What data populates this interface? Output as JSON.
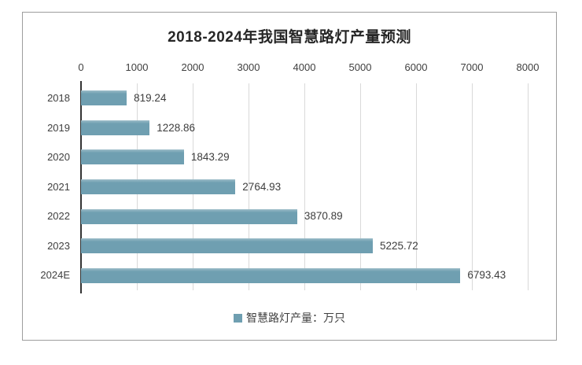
{
  "chart": {
    "title": "2018-2024年我国智慧路灯产量预测",
    "legend_label": "智慧路灯产量：万只",
    "colors": {
      "bar": "#6f9fb1",
      "grid": "#d9d9d9",
      "axis": "#333333",
      "text": "#404040",
      "frame_border": "#9d9d9d"
    }
  },
  "chart_data": {
    "type": "bar",
    "orientation": "horizontal",
    "title": "2018-2024年我国智慧路灯产量预测",
    "categories": [
      "2018",
      "2019",
      "2020",
      "2021",
      "2022",
      "2023",
      "2024E"
    ],
    "values": [
      819.24,
      1228.86,
      1843.29,
      2764.93,
      3870.89,
      5225.72,
      6793.43
    ],
    "value_labels": [
      "819.24",
      "1228.86",
      "1843.29",
      "2764.93",
      "3870.89",
      "5225.72",
      "6793.43"
    ],
    "xlabel": "",
    "ylabel": "",
    "xlim": [
      0,
      8000
    ],
    "x_ticks": [
      0,
      1000,
      2000,
      3000,
      4000,
      5000,
      6000,
      7000,
      8000
    ],
    "grid": true,
    "legend": [
      "智慧路灯产量：万只"
    ],
    "legend_position": "bottom"
  }
}
